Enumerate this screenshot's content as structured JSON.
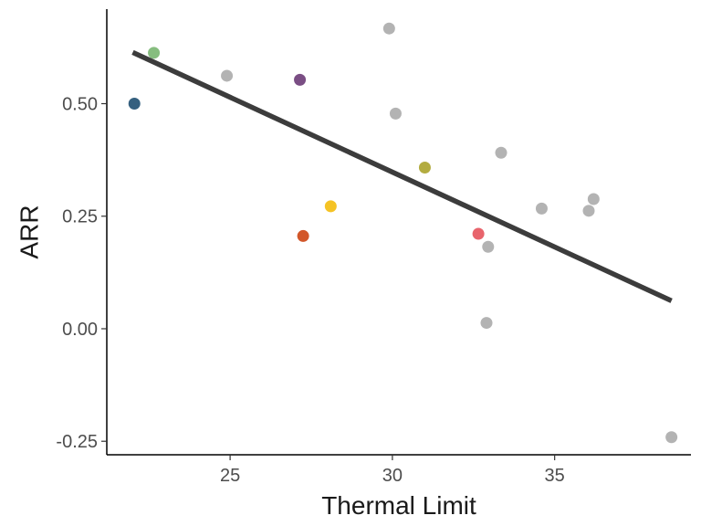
{
  "chart_data": {
    "type": "scatter",
    "title": "",
    "xlabel": "Thermal Limit",
    "ylabel": "ARR",
    "xlim": [
      21.2,
      39.2
    ],
    "ylim": [
      -0.28,
      0.71
    ],
    "grid": false,
    "legend": "none",
    "x_ticks": [
      {
        "value": 25,
        "label": "25"
      },
      {
        "value": 30,
        "label": "30"
      },
      {
        "value": 35,
        "label": "35"
      }
    ],
    "y_ticks": [
      {
        "value": -0.25,
        "label": "-0.25"
      },
      {
        "value": 0.0,
        "label": "0.00"
      },
      {
        "value": 0.25,
        "label": "0.25"
      },
      {
        "value": 0.5,
        "label": "0.50"
      }
    ],
    "points": [
      {
        "x": 22.05,
        "y": 0.5,
        "color": "#35607f"
      },
      {
        "x": 22.65,
        "y": 0.613,
        "color": "#86bd7f"
      },
      {
        "x": 24.9,
        "y": 0.562,
        "color": "#b3b3b3"
      },
      {
        "x": 27.15,
        "y": 0.553,
        "color": "#7a4e84"
      },
      {
        "x": 27.25,
        "y": 0.206,
        "color": "#d2572a"
      },
      {
        "x": 28.1,
        "y": 0.272,
        "color": "#f5c325"
      },
      {
        "x": 29.9,
        "y": 0.667,
        "color": "#b3b3b3"
      },
      {
        "x": 30.1,
        "y": 0.478,
        "color": "#b3b3b3"
      },
      {
        "x": 31.0,
        "y": 0.358,
        "color": "#b3ac40"
      },
      {
        "x": 32.65,
        "y": 0.211,
        "color": "#e8646c"
      },
      {
        "x": 32.9,
        "y": 0.013,
        "color": "#b3b3b3"
      },
      {
        "x": 32.95,
        "y": 0.182,
        "color": "#b3b3b3"
      },
      {
        "x": 33.35,
        "y": 0.391,
        "color": "#b3b3b3"
      },
      {
        "x": 34.6,
        "y": 0.267,
        "color": "#b3b3b3"
      },
      {
        "x": 36.05,
        "y": 0.262,
        "color": "#b3b3b3"
      },
      {
        "x": 36.2,
        "y": 0.288,
        "color": "#b3b3b3"
      },
      {
        "x": 38.6,
        "y": -0.241,
        "color": "#b3b3b3"
      }
    ],
    "trend_line": {
      "x": [
        22.0,
        38.6
      ],
      "y": [
        0.614,
        0.062
      ],
      "color": "#3c3c3c"
    }
  }
}
